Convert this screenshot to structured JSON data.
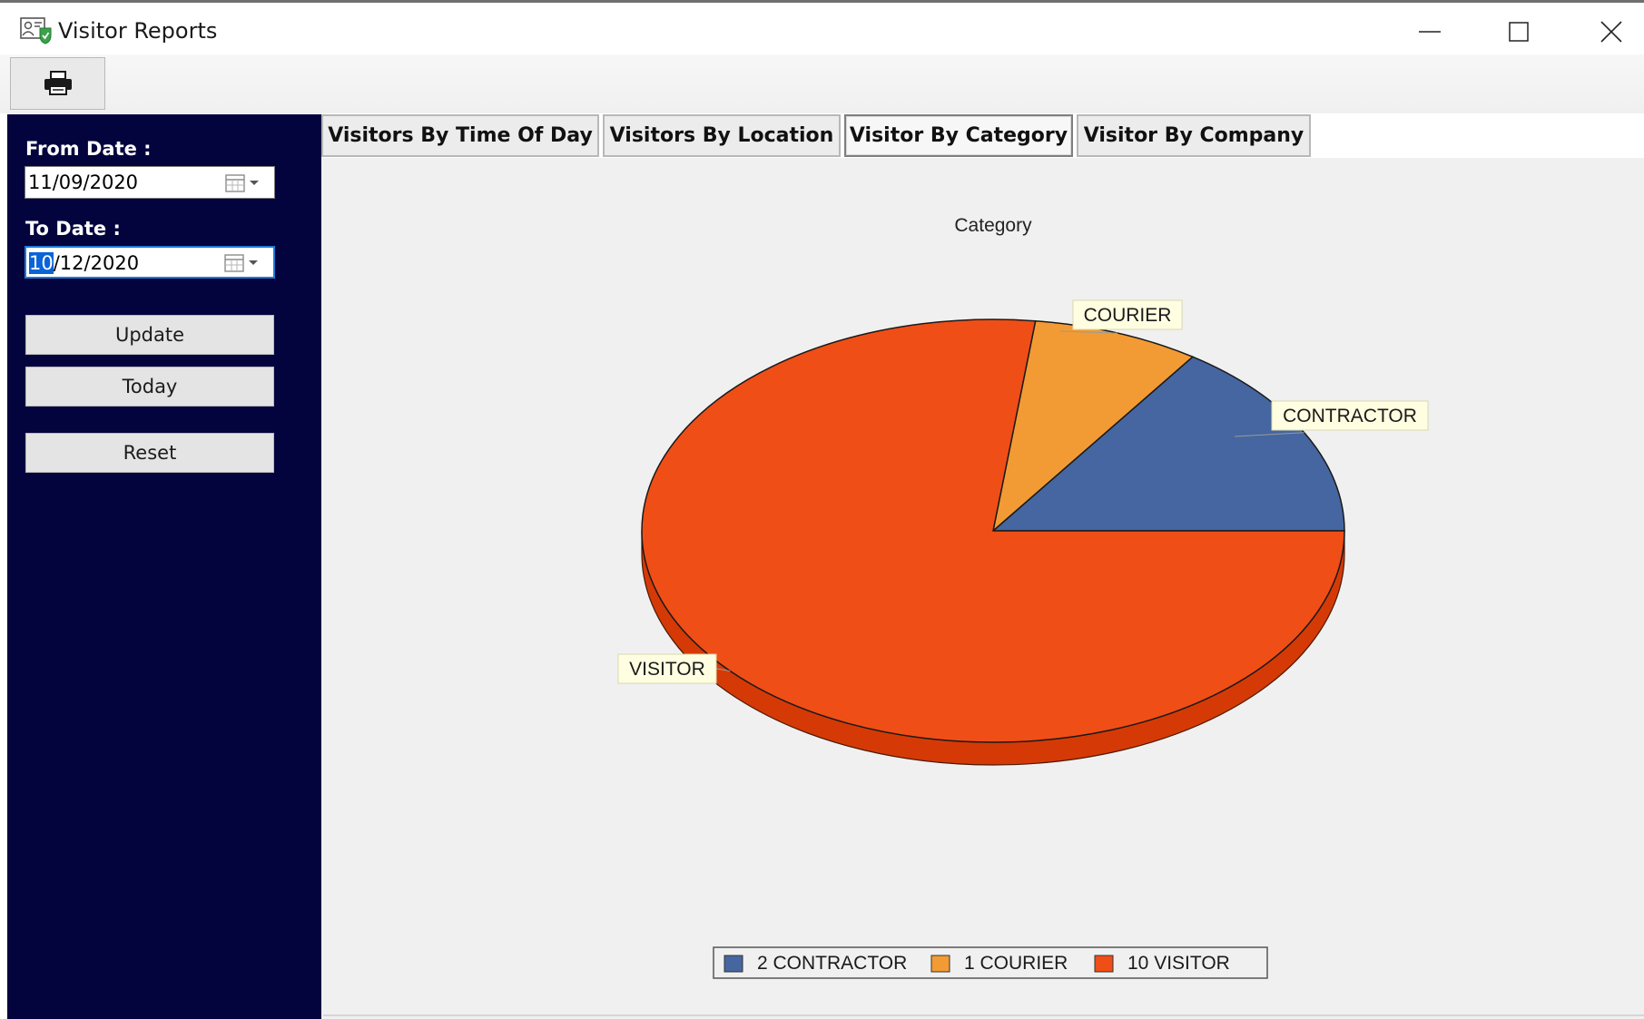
{
  "window": {
    "title": "Visitor Reports",
    "icon": "id-card-shield-icon"
  },
  "toolbar": {
    "print_icon": "printer-icon"
  },
  "sidebar": {
    "from_label": "From Date :",
    "from_value": "11/09/2020",
    "to_label": "To Date :",
    "to_value_selected": "10",
    "to_value_rest": "/12/2020",
    "update_label": "Update",
    "today_label": "Today",
    "reset_label": "Reset"
  },
  "tabs": [
    {
      "label": "Visitors By Time Of Day",
      "active": false
    },
    {
      "label": "Visitors By Location",
      "active": false
    },
    {
      "label": "Visitor By Category",
      "active": true
    },
    {
      "label": "Visitor By Company",
      "active": false
    }
  ],
  "colors": {
    "sidebar_bg": "#03033e",
    "contractor": "#4566a0",
    "courier": "#f29b34",
    "visitor": "#f04e17",
    "visitor_side": "#d53a06",
    "label_bg": "#fffee0"
  },
  "chart_data": {
    "type": "pie",
    "title": "Category",
    "categories": [
      "CONTRACTOR",
      "COURIER",
      "VISITOR"
    ],
    "values": [
      2,
      1,
      10
    ],
    "legend": [
      "2 CONTRACTOR",
      "1 COURIER",
      "10 VISITOR"
    ],
    "legend_position": "bottom",
    "style": "3d"
  }
}
